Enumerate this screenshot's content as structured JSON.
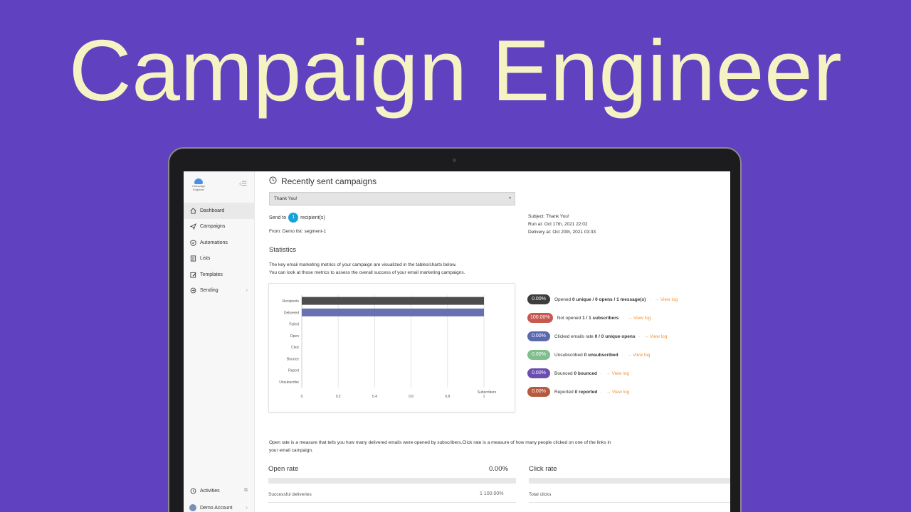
{
  "hero": {
    "title": "Campaign Engineer"
  },
  "sidebar": {
    "logo_text": "Campaign Engineer",
    "items": [
      {
        "label": "Dashboard",
        "icon": "home-icon"
      },
      {
        "label": "Campaigns",
        "icon": "send-icon"
      },
      {
        "label": "Automations",
        "icon": "shield-icon"
      },
      {
        "label": "Lists",
        "icon": "list-icon"
      },
      {
        "label": "Templates",
        "icon": "edit-icon"
      },
      {
        "label": "Sending",
        "icon": "sending-icon"
      }
    ],
    "bottom": [
      {
        "label": "Activities",
        "icon": "history-icon"
      },
      {
        "label": "Demo Account",
        "icon": "avatar"
      }
    ]
  },
  "header": {
    "title": "Recently sent campaigns"
  },
  "campaign_select": {
    "value": "Thank You!"
  },
  "send_info": {
    "send_to_prefix": "Send to",
    "recipient_count": "1",
    "send_to_suffix": "recipient(s)",
    "from": "From: Demo list: segment-1",
    "subject": "Subject: Thank You!",
    "run_at": "Run at: Oct 17th, 2021 22:02",
    "delivery_at": "Delivery at: Oct 20th, 2021 03:33"
  },
  "statistics": {
    "title": "Statistics",
    "desc_line1": "The key email marketing metrics of your campaign are visualized in the tables/charts below.",
    "desc_line2": "You can look at those metrics to assess the overall success of your email marketing campaigns."
  },
  "chart_data": {
    "type": "bar",
    "orientation": "horizontal",
    "categories": [
      "Recipients",
      "Delivered",
      "Failed",
      "Open",
      "Click",
      "Bounce",
      "Report",
      "Unsubscribe"
    ],
    "values": [
      1,
      1,
      0,
      0,
      0,
      0,
      0,
      0
    ],
    "bar_colors": [
      "#4d4d4d",
      "#6770b0",
      "#999999",
      "#999999",
      "#999999",
      "#999999",
      "#999999",
      "#999999"
    ],
    "xlabel": "Subscribers",
    "xlim": [
      0,
      1
    ],
    "xticks": [
      "0",
      "0.2",
      "0.4",
      "0.6",
      "0.8",
      "1"
    ],
    "grid": true
  },
  "metrics": [
    {
      "pct": "0.00%",
      "color": "#3d3d3d",
      "prefix": "Opened",
      "bold": "0 unique / 0 opens / 1 message(s)",
      "link": "→ View log"
    },
    {
      "pct": "100.00%",
      "color": "#c8574f",
      "prefix": "Not opened",
      "bold": "1 / 1 subscribers",
      "link": "→ View log"
    },
    {
      "pct": "0.00%",
      "color": "#5a68b0",
      "prefix": "Clicked emails rate",
      "bold": "0 / 0 unique opens",
      "link": "→ View log"
    },
    {
      "pct": "0.00%",
      "color": "#7fbf8e",
      "prefix": "Unsubscribed",
      "bold": "0 unsubscribed",
      "link": "→ View log"
    },
    {
      "pct": "0.00%",
      "color": "#6a4fb0",
      "prefix": "Bounced",
      "bold": "0 bounced",
      "link": "→ View log"
    },
    {
      "pct": "0.00%",
      "color": "#b5593f",
      "prefix": "Reported",
      "bold": "0 reported",
      "link": "→ View log"
    }
  ],
  "rates": {
    "desc": "Open rate is a measure that tells you how many delivered emails were opened by subscribers.Click rate is a measure of how many people clicked on one of the links in your email campaign.",
    "open_title": "Open rate",
    "open_pct": "0.00%",
    "open_row_label": "Successful deliveries",
    "open_row_value": "1 100.00%",
    "click_title": "Click rate",
    "click_row_label": "Total clicks"
  }
}
